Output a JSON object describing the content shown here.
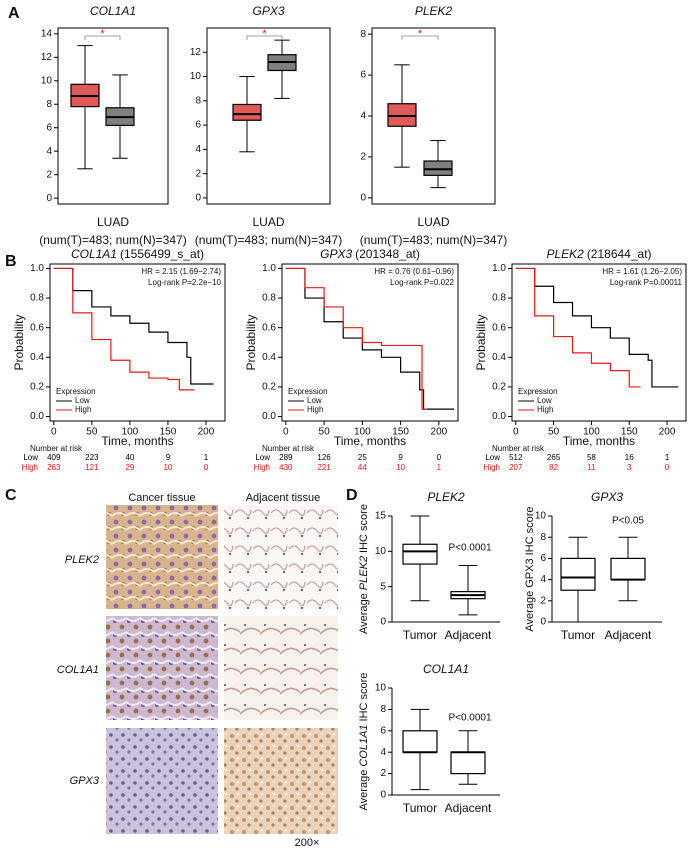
{
  "panel_labels": [
    "A",
    "B",
    "C",
    "D"
  ],
  "chart_data": [
    {
      "type": "box",
      "title": "COL1A1",
      "xlabel": "LUAD",
      "note": "(num(T)=483; num(N)=347)",
      "frame": true,
      "significance": "*",
      "significance_color": "#e41a1c",
      "ylim": [
        -0.5,
        14.5
      ],
      "yticks": [
        0,
        2,
        4,
        6,
        8,
        10,
        12,
        14
      ],
      "boxes": [
        {
          "color": "#e05a5a",
          "min": 2.5,
          "q1": 7.8,
          "median": 8.7,
          "q3": 9.7,
          "max": 13
        },
        {
          "color": "#808080",
          "min": 3.4,
          "q1": 6.2,
          "median": 6.9,
          "q3": 7.7,
          "max": 10.5
        }
      ]
    },
    {
      "type": "box",
      "title": "GPX3",
      "xlabel": "LUAD",
      "note": "(num(T)=483; num(N)=347)",
      "frame": true,
      "significance": "*",
      "significance_color": "#e41a1c",
      "ylim": [
        -0.5,
        14
      ],
      "yticks": [
        0,
        2,
        4,
        6,
        8,
        10,
        12
      ],
      "boxes": [
        {
          "color": "#e05a5a",
          "min": 3.8,
          "q1": 6.4,
          "median": 6.9,
          "q3": 7.7,
          "max": 10
        },
        {
          "color": "#808080",
          "min": 8.2,
          "q1": 10.5,
          "median": 11.2,
          "q3": 11.8,
          "max": 13
        }
      ]
    },
    {
      "type": "box",
      "title": "PLEK2",
      "xlabel": "LUAD",
      "note": "(num(T)=483; num(N)=347)",
      "frame": true,
      "significance": "*",
      "significance_color": "#e41a1c",
      "ylim": [
        -0.3,
        8.3
      ],
      "yticks": [
        0,
        2,
        4,
        6,
        8
      ],
      "boxes": [
        {
          "color": "#e05a5a",
          "min": 1.5,
          "q1": 3.5,
          "median": 4.0,
          "q3": 4.6,
          "max": 6.5
        },
        {
          "color": "#808080",
          "min": 0.5,
          "q1": 1.1,
          "median": 1.4,
          "q3": 1.8,
          "max": 2.8
        }
      ]
    },
    {
      "type": "km",
      "title": {
        "gene": "COL1A1",
        "probe": "(1556499_s_at)"
      },
      "hr": "HR = 2.15 (1.69−2.74)",
      "p": "Log-rank P=2.2e−10",
      "xlabel": "Time, months",
      "ylabel": "Probability",
      "legend_title": "Expression",
      "risk_title": "Number at risk",
      "xlim": [
        -5,
        225
      ],
      "xticks": [
        0,
        50,
        100,
        150,
        200
      ],
      "ylim": [
        -0.03,
        1.03
      ],
      "yticks": [
        {
          "value": 0,
          "label": "0.0"
        },
        0.2,
        0.4,
        0.6,
        0.8,
        {
          "value": 1,
          "label": "1.0"
        }
      ],
      "series": [
        {
          "name": "Low",
          "color": "#000000",
          "x": [
            0,
            25,
            50,
            75,
            100,
            125,
            150,
            175,
            180,
            210
          ],
          "values": [
            1,
            0.85,
            0.74,
            0.68,
            0.63,
            0.57,
            0.5,
            0.4,
            0.22,
            0.22
          ],
          "at_risk": [
            409,
            223,
            40,
            9,
            1
          ]
        },
        {
          "name": "High",
          "color": "#e41a1c",
          "x": [
            0,
            25,
            50,
            75,
            100,
            125,
            150,
            165,
            185
          ],
          "values": [
            1,
            0.7,
            0.52,
            0.38,
            0.3,
            0.26,
            0.25,
            0.18,
            0.18
          ],
          "at_risk": [
            263,
            121,
            29,
            10,
            0
          ]
        }
      ]
    },
    {
      "type": "km",
      "title": {
        "gene": "GPX3",
        "probe": "(201348_at)"
      },
      "hr": "HR = 0.76 (0.61−0.96)",
      "p": "Log-rank P=0.022",
      "xlabel": "Time, months",
      "ylabel": "Probability",
      "legend_title": "Expression",
      "risk_title": "Number at risk",
      "xlim": [
        -5,
        225
      ],
      "xticks": [
        0,
        50,
        100,
        150,
        200
      ],
      "ylim": [
        -0.03,
        1.03
      ],
      "yticks": [
        {
          "value": 0,
          "label": "0.0"
        },
        0.2,
        0.4,
        0.6,
        0.8,
        {
          "value": 1,
          "label": "1.0"
        }
      ],
      "series": [
        {
          "name": "Low",
          "color": "#000000",
          "x": [
            0,
            25,
            50,
            75,
            100,
            125,
            150,
            175,
            180,
            220
          ],
          "values": [
            1,
            0.8,
            0.64,
            0.53,
            0.45,
            0.4,
            0.3,
            0.18,
            0.05,
            0.05
          ],
          "at_risk": [
            289,
            126,
            25,
            9,
            0
          ]
        },
        {
          "name": "High",
          "color": "#e41a1c",
          "x": [
            0,
            25,
            50,
            75,
            100,
            125,
            150,
            175,
            178,
            185
          ],
          "values": [
            1,
            0.87,
            0.74,
            0.6,
            0.5,
            0.48,
            0.48,
            0.48,
            0.05,
            0.05
          ],
          "at_risk": [
            430,
            221,
            44,
            10,
            1
          ]
        }
      ]
    },
    {
      "type": "km",
      "title": {
        "gene": "PLEK2",
        "probe": "(218644_at)"
      },
      "hr": "HR = 1.61 (1.26−2.05)",
      "p": "Log-rank P=0.00011",
      "xlabel": "Time, months",
      "ylabel": "Probability",
      "legend_title": "Expression",
      "risk_title": "Number at risk",
      "xlim": [
        -5,
        225
      ],
      "xticks": [
        0,
        50,
        100,
        150,
        200
      ],
      "ylim": [
        -0.03,
        1.03
      ],
      "yticks": [
        {
          "value": 0,
          "label": "0.0"
        },
        0.2,
        0.4,
        0.6,
        0.8,
        {
          "value": 1,
          "label": "1.0"
        }
      ],
      "series": [
        {
          "name": "Low",
          "color": "#000000",
          "x": [
            0,
            25,
            50,
            75,
            100,
            125,
            150,
            175,
            180,
            215
          ],
          "values": [
            1,
            0.88,
            0.77,
            0.68,
            0.6,
            0.53,
            0.42,
            0.38,
            0.2,
            0.2
          ],
          "at_risk": [
            512,
            265,
            58,
            16,
            1
          ]
        },
        {
          "name": "High",
          "color": "#e41a1c",
          "x": [
            0,
            25,
            50,
            75,
            100,
            125,
            150,
            165
          ],
          "values": [
            1,
            0.68,
            0.54,
            0.43,
            0.36,
            0.31,
            0.2,
            0.2
          ],
          "at_risk": [
            207,
            82,
            11,
            3,
            0
          ]
        }
      ]
    },
    {
      "type": "box",
      "title": "PLEK2",
      "categories": [
        "Tumor",
        "Adjacent"
      ],
      "frame": false,
      "annotation": "P<0.0001",
      "ylabel": {
        "prefix": "Average",
        "gene": "PLEK2",
        "suffix": "IHC score"
      },
      "ylim": [
        0,
        15
      ],
      "yticks": [
        0,
        5,
        10,
        15
      ],
      "boxes": [
        {
          "color": "#ffffff",
          "min": 3,
          "q1": 8.2,
          "median": 10,
          "q3": 11,
          "max": 15
        },
        {
          "color": "#ffffff",
          "min": 1,
          "q1": 3.3,
          "median": 3.8,
          "q3": 4.3,
          "max": 8
        }
      ]
    },
    {
      "type": "box",
      "title": "GPX3",
      "categories": [
        "Tumor",
        "Adjacent"
      ],
      "frame": false,
      "annotation": "P<0.05",
      "ylabel": "Average GPX3 IHC score",
      "ylim": [
        0,
        10
      ],
      "yticks": [
        0,
        2,
        4,
        6,
        8,
        10
      ],
      "boxes": [
        {
          "color": "#ffffff",
          "min": 0,
          "q1": 3,
          "median": 4.2,
          "q3": 6,
          "max": 8
        },
        {
          "color": "#ffffff",
          "min": 2,
          "q1": 4,
          "median": 4,
          "q3": 6,
          "max": 8
        }
      ]
    },
    {
      "type": "box",
      "title": "COL1A1",
      "categories": [
        "Tumor",
        "Adjacent"
      ],
      "frame": false,
      "annotation": "P<0.0001",
      "ylabel": {
        "prefix": "Average",
        "gene": "COL1A1",
        "suffix": "IHC score"
      },
      "ylim": [
        0,
        10
      ],
      "yticks": [
        0,
        2,
        4,
        6,
        8,
        10
      ],
      "boxes": [
        {
          "color": "#ffffff",
          "min": 0.5,
          "q1": 4,
          "median": 4,
          "q3": 6,
          "max": 8
        },
        {
          "color": "#ffffff",
          "min": 1,
          "q1": 2,
          "median": 4,
          "q3": 4,
          "max": 6
        }
      ]
    }
  ],
  "ihc": {
    "columns": [
      "Cancer tissue",
      "Adjacent tissue"
    ],
    "rows": [
      "PLEK2",
      "COL1A1",
      "GPX3"
    ],
    "magnification": "200×"
  }
}
